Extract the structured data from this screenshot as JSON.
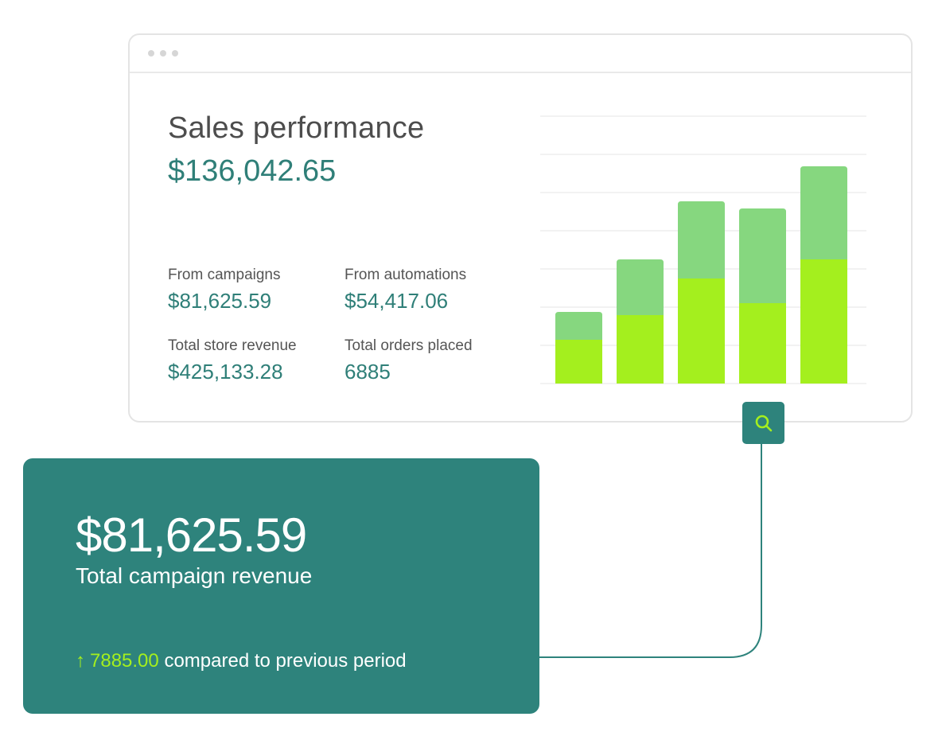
{
  "window": {
    "title": "Sales performance",
    "total": "$136,042.65"
  },
  "stats": {
    "campaigns": {
      "label": "From campaigns",
      "value": "$81,625.59"
    },
    "automations": {
      "label": "From automations",
      "value": "$54,417.06"
    },
    "store_revenue": {
      "label": "Total store revenue",
      "value": "$425,133.28"
    },
    "orders": {
      "label": "Total orders placed",
      "value": "6885"
    }
  },
  "chart_data": {
    "type": "bar",
    "stacked": true,
    "categories": [
      "",
      "",
      "",
      "",
      ""
    ],
    "series": [
      {
        "values": [
          55,
          86,
          132,
          101,
          156
        ],
        "color": "#a4ef1e"
      },
      {
        "values": [
          35,
          70,
          97,
          119,
          117
        ],
        "color": "#86d77f"
      }
    ],
    "ylim": [
      0,
      336
    ],
    "grid": true
  },
  "search_button": {
    "icon": "search-icon",
    "color": "#a4ef1e"
  },
  "card": {
    "amount": "$81,625.59",
    "label": "Total campaign revenue",
    "arrow": "↑",
    "delta": "7885.00",
    "compare_text": "compared to previous period"
  },
  "colors": {
    "teal": "#2e837c",
    "teal_text": "#2f7f78",
    "lime": "#a4ef1e",
    "light_green": "#86d77f"
  }
}
